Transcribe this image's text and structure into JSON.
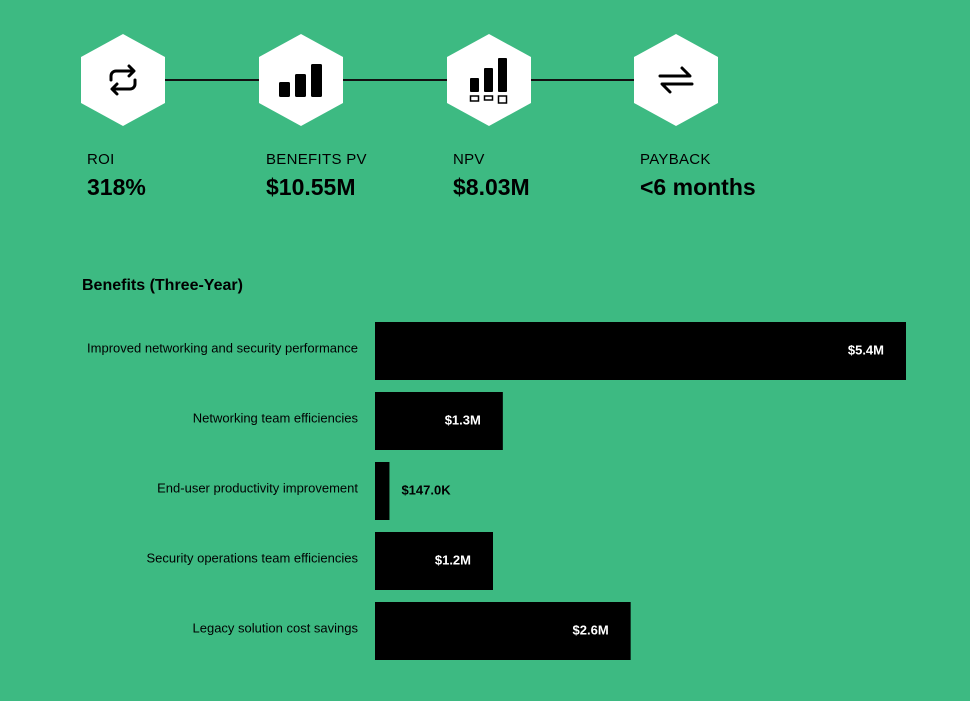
{
  "colors": {
    "background": "#3dba82",
    "bar": "#000000",
    "hex_fill": "#ffffff",
    "text": "#000000",
    "bar_label_inside": "#ffffff"
  },
  "metrics": [
    {
      "icon": "repeat-arrows-icon",
      "label": "ROI",
      "value": "318%"
    },
    {
      "icon": "bar-chart-icon",
      "label": "BENEFITS PV",
      "value": "$10.55M"
    },
    {
      "icon": "bar-chart-boxes-icon",
      "label": "NPV",
      "value": "$8.03M"
    },
    {
      "icon": "exchange-arrows-icon",
      "label": "PAYBACK",
      "value": "<6 months"
    }
  ],
  "chart_data": {
    "type": "bar",
    "orientation": "horizontal",
    "title": "Benefits (Three-Year)",
    "categories": [
      "Improved networking and security performance",
      "Networking team efficiencies",
      "End-user productivity improvement",
      "Security operations team efficiencies",
      "Legacy solution cost savings"
    ],
    "values": [
      5.4,
      1.3,
      0.147,
      1.2,
      2.6
    ],
    "value_unit": "$M",
    "data_labels": [
      "$5.4M",
      "$1.3M",
      "$147.0K",
      "$1.2M",
      "$2.6M"
    ],
    "xlim": [
      0,
      5.4
    ],
    "grid": false,
    "legend": "none"
  }
}
